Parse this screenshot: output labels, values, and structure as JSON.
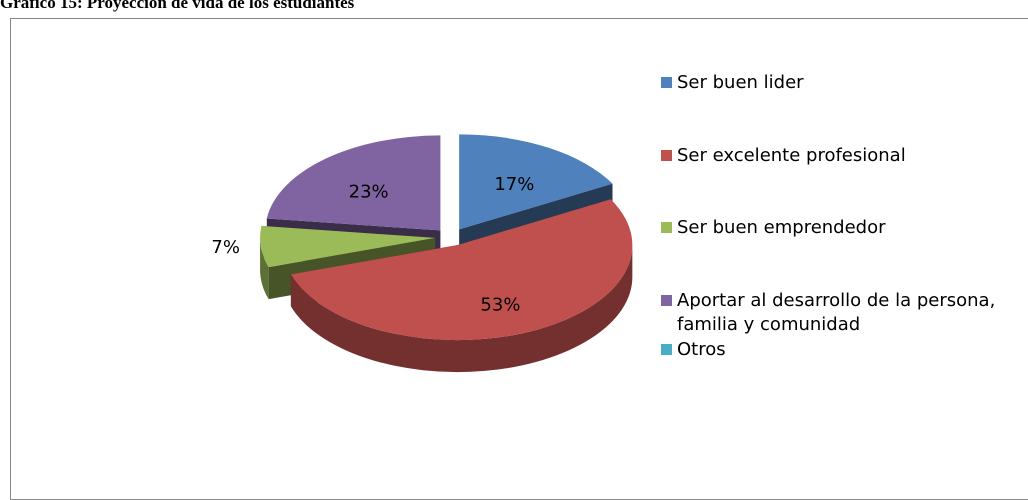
{
  "chart_data": {
    "type": "pie3d",
    "title": "Gráfico 15: Proyección de vida de los estudiantes",
    "categories": [
      "Ser buen lider",
      "Ser excelente profesional",
      "Ser buen emprendedor",
      "Aportar al desarrollo de la persona, familia y comunidad",
      "Otros"
    ],
    "values": [
      17,
      53,
      7,
      23,
      0
    ],
    "value_labels": [
      "17%",
      "53%",
      "7%",
      "23%",
      null
    ],
    "colors": [
      "#4f81bd",
      "#c0504d",
      "#9bbb59",
      "#8064a2",
      "#4bacc6"
    ],
    "legend": "right"
  }
}
